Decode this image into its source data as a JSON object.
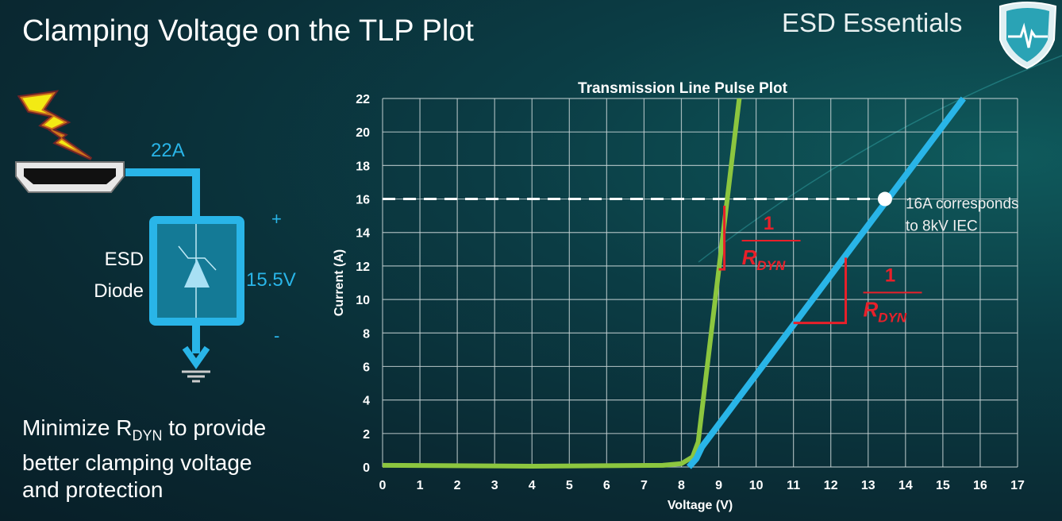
{
  "slide": {
    "title": "Clamping Voltage on the TLP Plot",
    "brand": "ESD Essentials",
    "bottom_text": {
      "line1_prefix": "Minimize R",
      "line1_sub": "DYN",
      "line1_suffix": " to provide",
      "line2": "better clamping voltage",
      "line3": "and protection"
    }
  },
  "circuit": {
    "current_label": "22A",
    "device_label_1": "ESD",
    "device_label_2": "Diode",
    "voltage_label": "15.5V",
    "plus": "+",
    "minus": "-",
    "icons": [
      "lightning-icon",
      "hdmi-connector-icon",
      "tvs-diode-icon",
      "ground-icon"
    ],
    "color": "#29b5e8"
  },
  "chart_data": {
    "type": "line",
    "title": "Transmission Line Pulse Plot",
    "xlabel": "Voltage (V)",
    "ylabel": "Current (A)",
    "xlim": [
      0,
      17
    ],
    "ylim": [
      0,
      22
    ],
    "xticks": [
      "0",
      "1",
      "2",
      "3",
      "4",
      "5",
      "6",
      "7",
      "8",
      "9",
      "10",
      "11",
      "12",
      "13",
      "14",
      "15",
      "16",
      "17"
    ],
    "yticks": [
      "0",
      "2",
      "4",
      "6",
      "8",
      "10",
      "12",
      "14",
      "16",
      "18",
      "20",
      "22"
    ],
    "grid": true,
    "series": [
      {
        "color": "#8cc63f",
        "points": [
          [
            0,
            0.1
          ],
          [
            4,
            0.05
          ],
          [
            7.5,
            0.1
          ],
          [
            8.0,
            0.2
          ],
          [
            8.3,
            0.6
          ],
          [
            8.45,
            1.5
          ],
          [
            9.55,
            22
          ]
        ]
      },
      {
        "color": "#29b5e8",
        "points": [
          [
            8.2,
            0.0
          ],
          [
            8.4,
            0.5
          ],
          [
            8.55,
            1.2
          ],
          [
            15.55,
            22
          ]
        ]
      }
    ],
    "reference_line": {
      "y": 16,
      "style": "dashed",
      "color": "#ffffff"
    },
    "marker": {
      "x": 13.45,
      "y": 16,
      "color": "#ffffff"
    },
    "annotations": {
      "marker_text_1": "16A corresponds",
      "marker_text_2": "to 8kV IEC",
      "slope_numerator": "1",
      "slope_denominator_main": "R",
      "slope_denominator_sub": "DYN",
      "slope_color": "#e8202a",
      "slope_triangles": [
        {
          "x_from": 9.0,
          "x_to": 9.15,
          "y_from": 11.8,
          "y_to": 15.6
        },
        {
          "x_from": 11.0,
          "x_to": 12.4,
          "y_from": 8.6,
          "y_to": 12.5
        }
      ]
    }
  }
}
